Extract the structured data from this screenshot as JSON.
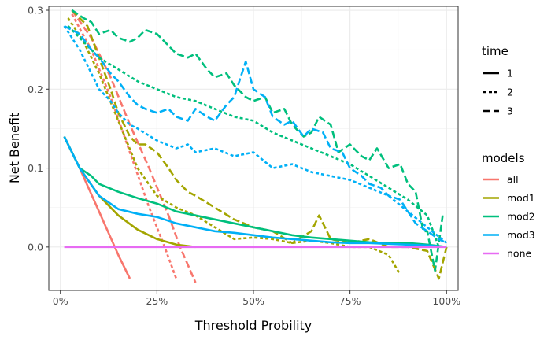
{
  "chart_data": {
    "type": "line",
    "title": "",
    "xlabel": "Threshold Probility",
    "ylabel": "Net Benefit",
    "xlim": [
      -0.03,
      1.03
    ],
    "ylim": [
      -0.055,
      0.305
    ],
    "x_ticks": [
      {
        "value": 0,
        "label": "0%"
      },
      {
        "value": 0.25,
        "label": "25%"
      },
      {
        "value": 0.5,
        "label": "50%"
      },
      {
        "value": 0.75,
        "label": "75%"
      },
      {
        "value": 1,
        "label": "100%"
      }
    ],
    "y_ticks": [
      {
        "value": 0,
        "label": "0.0"
      },
      {
        "value": 0.1,
        "label": "0.1"
      },
      {
        "value": 0.2,
        "label": "0.2"
      },
      {
        "value": 0.3,
        "label": "0.3"
      }
    ],
    "grid": true,
    "legend_position": "right",
    "legends": [
      {
        "title": "time",
        "entries": [
          {
            "label": "1",
            "linetype": "solid"
          },
          {
            "label": "2",
            "linetype": "dotted"
          },
          {
            "label": "3",
            "linetype": "dashed"
          }
        ]
      },
      {
        "title": "models",
        "entries": [
          {
            "label": "all",
            "color": "#F8766D"
          },
          {
            "label": "mod1",
            "color": "#A3A500"
          },
          {
            "label": "mod2",
            "color": "#00BF7D"
          },
          {
            "label": "mod3",
            "color": "#00B0F6"
          },
          {
            "label": "none",
            "color": "#E76BF3"
          }
        ]
      }
    ],
    "series": [
      {
        "model": "all",
        "time": "1",
        "color": "#F8766D",
        "linetype": "solid",
        "x": [
          0.01,
          0.05,
          0.1,
          0.15,
          0.18
        ],
        "y": [
          0.14,
          0.1,
          0.045,
          -0.01,
          -0.04
        ]
      },
      {
        "model": "all",
        "time": "2",
        "color": "#F8766D",
        "linetype": "dotted",
        "x": [
          0.03,
          0.08,
          0.13,
          0.18,
          0.23,
          0.27,
          0.3
        ],
        "y": [
          0.295,
          0.25,
          0.19,
          0.12,
          0.05,
          0.0,
          -0.04
        ]
      },
      {
        "model": "all",
        "time": "3",
        "color": "#F8766D",
        "linetype": "dashed",
        "x": [
          0.03,
          0.08,
          0.13,
          0.18,
          0.23,
          0.28,
          0.31,
          0.35
        ],
        "y": [
          0.3,
          0.265,
          0.215,
          0.155,
          0.1,
          0.04,
          0.0,
          -0.045
        ]
      },
      {
        "model": "mod1",
        "time": "1",
        "color": "#A3A500",
        "linetype": "solid",
        "x": [
          0.01,
          0.05,
          0.1,
          0.15,
          0.2,
          0.25,
          0.3,
          0.35
        ],
        "y": [
          0.14,
          0.1,
          0.065,
          0.04,
          0.022,
          0.01,
          0.003,
          0.0
        ]
      },
      {
        "model": "mod1",
        "time": "2",
        "color": "#A3A500",
        "linetype": "dotted",
        "x": [
          0.02,
          0.06,
          0.1,
          0.15,
          0.2,
          0.25,
          0.3,
          0.35,
          0.4,
          0.45,
          0.5,
          0.55,
          0.6,
          0.65,
          0.7,
          0.75,
          0.8,
          0.85,
          0.88
        ],
        "y": [
          0.29,
          0.26,
          0.22,
          0.16,
          0.1,
          0.065,
          0.05,
          0.04,
          0.025,
          0.01,
          0.012,
          0.01,
          0.005,
          0.008,
          0.005,
          0.0,
          0.0,
          -0.01,
          -0.035
        ]
      },
      {
        "model": "mod1",
        "time": "3",
        "color": "#A3A500",
        "linetype": "dashed",
        "x": [
          0.03,
          0.07,
          0.1,
          0.13,
          0.15,
          0.18,
          0.2,
          0.22,
          0.25,
          0.28,
          0.3,
          0.33,
          0.35,
          0.4,
          0.45,
          0.5,
          0.55,
          0.6,
          0.65,
          0.67,
          0.7,
          0.75,
          0.8,
          0.85,
          0.9,
          0.95,
          0.98,
          1.0
        ],
        "y": [
          0.3,
          0.28,
          0.24,
          0.2,
          0.17,
          0.14,
          0.13,
          0.13,
          0.12,
          0.1,
          0.085,
          0.07,
          0.065,
          0.05,
          0.035,
          0.025,
          0.02,
          0.005,
          0.02,
          0.04,
          0.01,
          0.005,
          0.01,
          0.0,
          0.0,
          -0.005,
          -0.04,
          0.0
        ]
      },
      {
        "model": "mod2",
        "time": "1",
        "color": "#00BF7D",
        "linetype": "solid",
        "x": [
          0.01,
          0.05,
          0.08,
          0.1,
          0.15,
          0.2,
          0.25,
          0.3,
          0.35,
          0.4,
          0.45,
          0.5,
          0.55,
          0.6,
          0.65,
          0.7,
          0.75,
          0.8,
          0.85,
          0.9,
          0.95,
          1.0
        ],
        "y": [
          0.14,
          0.1,
          0.09,
          0.08,
          0.07,
          0.062,
          0.055,
          0.045,
          0.04,
          0.035,
          0.03,
          0.025,
          0.02,
          0.015,
          0.012,
          0.01,
          0.008,
          0.006,
          0.005,
          0.005,
          0.003,
          0.0
        ]
      },
      {
        "model": "mod2",
        "time": "2",
        "color": "#00BF7D",
        "linetype": "dotted",
        "x": [
          0.02,
          0.06,
          0.1,
          0.15,
          0.2,
          0.25,
          0.3,
          0.35,
          0.4,
          0.45,
          0.5,
          0.55,
          0.6,
          0.65,
          0.7,
          0.75,
          0.8,
          0.85,
          0.9,
          0.95,
          0.98
        ],
        "y": [
          0.28,
          0.26,
          0.24,
          0.225,
          0.21,
          0.2,
          0.19,
          0.185,
          0.175,
          0.165,
          0.16,
          0.145,
          0.135,
          0.125,
          0.115,
          0.105,
          0.09,
          0.075,
          0.06,
          0.04,
          0.0
        ]
      },
      {
        "model": "mod2",
        "time": "3",
        "color": "#00BF7D",
        "linetype": "dashed",
        "x": [
          0.03,
          0.06,
          0.08,
          0.1,
          0.13,
          0.15,
          0.18,
          0.2,
          0.22,
          0.25,
          0.28,
          0.3,
          0.33,
          0.35,
          0.38,
          0.4,
          0.43,
          0.45,
          0.48,
          0.5,
          0.53,
          0.55,
          0.58,
          0.6,
          0.63,
          0.65,
          0.67,
          0.7,
          0.72,
          0.75,
          0.78,
          0.8,
          0.82,
          0.85,
          0.88,
          0.9,
          0.92,
          0.94,
          0.95,
          0.97,
          0.99
        ],
        "y": [
          0.3,
          0.29,
          0.285,
          0.27,
          0.275,
          0.265,
          0.26,
          0.265,
          0.275,
          0.27,
          0.255,
          0.245,
          0.24,
          0.245,
          0.225,
          0.215,
          0.22,
          0.205,
          0.19,
          0.185,
          0.19,
          0.17,
          0.175,
          0.155,
          0.14,
          0.145,
          0.165,
          0.155,
          0.12,
          0.13,
          0.115,
          0.11,
          0.125,
          0.1,
          0.105,
          0.08,
          0.07,
          0.02,
          0.02,
          -0.03,
          0.04
        ]
      },
      {
        "model": "mod3",
        "time": "1",
        "color": "#00B0F6",
        "linetype": "solid",
        "x": [
          0.01,
          0.05,
          0.1,
          0.15,
          0.2,
          0.25,
          0.3,
          0.35,
          0.4,
          0.45,
          0.5,
          0.55,
          0.6,
          0.65,
          0.7,
          0.75,
          0.8,
          0.85,
          0.9,
          0.95,
          1.0
        ],
        "y": [
          0.14,
          0.1,
          0.065,
          0.048,
          0.042,
          0.038,
          0.03,
          0.025,
          0.02,
          0.018,
          0.015,
          0.012,
          0.01,
          0.008,
          0.006,
          0.005,
          0.005,
          0.004,
          0.003,
          0.002,
          0.0
        ]
      },
      {
        "model": "mod3",
        "time": "2",
        "color": "#00B0F6",
        "linetype": "dotted",
        "x": [
          0.01,
          0.05,
          0.08,
          0.1,
          0.13,
          0.15,
          0.18,
          0.2,
          0.25,
          0.3,
          0.33,
          0.35,
          0.4,
          0.45,
          0.5,
          0.55,
          0.6,
          0.65,
          0.7,
          0.75,
          0.8,
          0.85,
          0.9,
          0.95,
          1.0
        ],
        "y": [
          0.28,
          0.25,
          0.22,
          0.2,
          0.185,
          0.17,
          0.155,
          0.15,
          0.135,
          0.125,
          0.13,
          0.12,
          0.125,
          0.115,
          0.12,
          0.1,
          0.105,
          0.095,
          0.09,
          0.085,
          0.075,
          0.065,
          0.045,
          0.025,
          0.005
        ]
      },
      {
        "model": "mod3",
        "time": "3",
        "color": "#00B0F6",
        "linetype": "dashed",
        "x": [
          0.01,
          0.05,
          0.08,
          0.1,
          0.13,
          0.15,
          0.18,
          0.2,
          0.22,
          0.25,
          0.28,
          0.3,
          0.33,
          0.35,
          0.38,
          0.4,
          0.43,
          0.45,
          0.48,
          0.5,
          0.53,
          0.55,
          0.58,
          0.6,
          0.63,
          0.65,
          0.68,
          0.7,
          0.73,
          0.75,
          0.78,
          0.8,
          0.83,
          0.85,
          0.88,
          0.9,
          0.92,
          0.95,
          0.98,
          1.0
        ],
        "y": [
          0.28,
          0.27,
          0.25,
          0.24,
          0.22,
          0.21,
          0.19,
          0.18,
          0.175,
          0.17,
          0.175,
          0.165,
          0.16,
          0.175,
          0.165,
          0.16,
          0.18,
          0.19,
          0.235,
          0.2,
          0.19,
          0.165,
          0.155,
          0.16,
          0.14,
          0.15,
          0.145,
          0.125,
          0.12,
          0.1,
          0.09,
          0.08,
          0.075,
          0.065,
          0.06,
          0.045,
          0.03,
          0.02,
          0.01,
          0.005
        ]
      },
      {
        "model": "none",
        "time": "1",
        "color": "#E76BF3",
        "linetype": "solid",
        "x": [
          0.01,
          1.0
        ],
        "y": [
          0.0,
          0.0
        ]
      }
    ]
  }
}
